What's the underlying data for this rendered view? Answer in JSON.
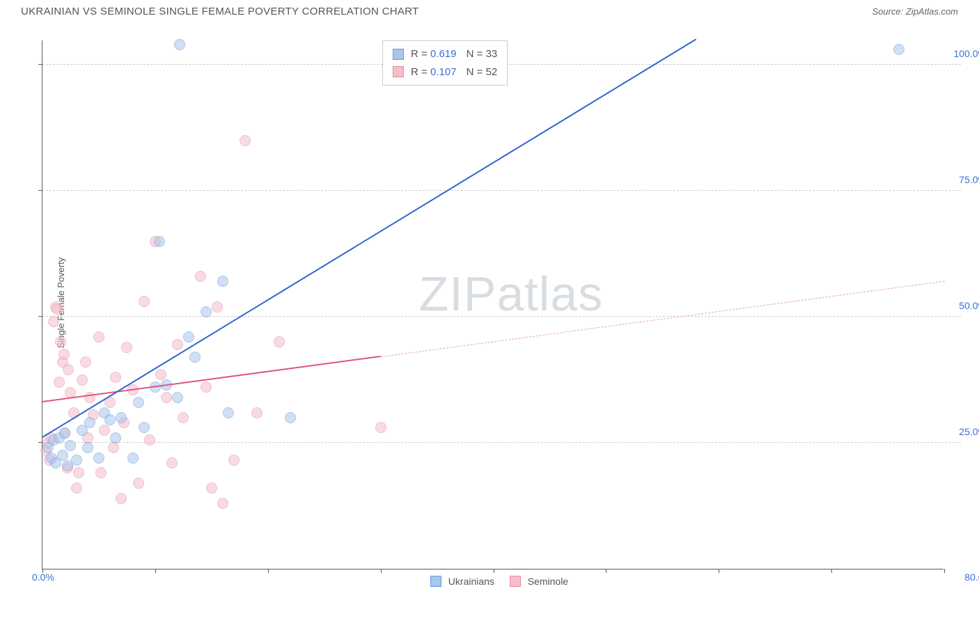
{
  "header": {
    "title": "UKRAINIAN VS SEMINOLE SINGLE FEMALE POVERTY CORRELATION CHART",
    "source_label": "Source: ZipAtlas.com"
  },
  "chart": {
    "type": "scatter",
    "ylabel": "Single Female Poverty",
    "xlim": [
      0,
      80
    ],
    "ylim": [
      0,
      105
    ],
    "x_ticks": [
      0,
      10,
      20,
      30,
      40,
      50,
      60,
      70,
      80
    ],
    "y_ticks": [
      25,
      50,
      75,
      100
    ],
    "x_tick_labels": {
      "min": "0.0%",
      "max": "80.0%"
    },
    "y_tick_labels": [
      "25.0%",
      "50.0%",
      "75.0%",
      "100.0%"
    ],
    "background_color": "#ffffff",
    "grid_color": "#cccccc",
    "axis_color": "#5a5a5a",
    "tick_label_color": "#3a6fd8",
    "marker_radius": 8,
    "marker_opacity": 0.55,
    "watermark_text": "ZIPatlas",
    "watermark_color": "#d8dde2",
    "series": {
      "ukrainians": {
        "label": "Ukrainians",
        "color_fill": "#a9c6ec",
        "color_stroke": "#6a9ad8",
        "R": "0.619",
        "N": "33",
        "trend": {
          "x1": 0,
          "y1": 26,
          "x2": 58,
          "y2": 105,
          "color": "#2f66d0",
          "width": 2.5,
          "dash": "solid"
        },
        "points": [
          [
            0.5,
            24
          ],
          [
            0.8,
            22
          ],
          [
            1,
            25.5
          ],
          [
            1.2,
            21
          ],
          [
            1.5,
            26
          ],
          [
            1.8,
            22.5
          ],
          [
            2,
            27
          ],
          [
            2.2,
            20.5
          ],
          [
            2.5,
            24.5
          ],
          [
            3,
            21.5
          ],
          [
            3.5,
            27.5
          ],
          [
            4,
            24
          ],
          [
            4.2,
            29
          ],
          [
            5,
            22
          ],
          [
            5.5,
            31
          ],
          [
            6,
            29.5
          ],
          [
            6.5,
            26
          ],
          [
            7,
            30
          ],
          [
            8,
            22
          ],
          [
            8.5,
            33
          ],
          [
            9,
            28
          ],
          [
            10,
            36
          ],
          [
            10.4,
            65
          ],
          [
            11,
            36.5
          ],
          [
            12,
            34
          ],
          [
            12.2,
            104
          ],
          [
            13,
            46
          ],
          [
            13.5,
            42
          ],
          [
            14.5,
            51
          ],
          [
            16,
            57
          ],
          [
            16.5,
            31
          ],
          [
            22,
            30
          ],
          [
            76,
            103
          ]
        ]
      },
      "seminole": {
        "label": "Seminole",
        "color_fill": "#f4bfca",
        "color_stroke": "#e68aa0",
        "R": "0.107",
        "N": "52",
        "trend_solid": {
          "x1": 0,
          "y1": 33,
          "x2": 30,
          "y2": 42,
          "color": "#e05578",
          "width": 2,
          "dash": "solid"
        },
        "trend_dash": {
          "x1": 30,
          "y1": 42,
          "x2": 80,
          "y2": 57,
          "color": "#e9a3b4",
          "width": 1.3,
          "dash": "dashed"
        },
        "points": [
          [
            0.3,
            23.5
          ],
          [
            0.5,
            25
          ],
          [
            0.6,
            21.5
          ],
          [
            0.8,
            26
          ],
          [
            1,
            49
          ],
          [
            1.2,
            52
          ],
          [
            1.3,
            51.5
          ],
          [
            1.5,
            37
          ],
          [
            1.6,
            45
          ],
          [
            1.8,
            41
          ],
          [
            1.9,
            42.5
          ],
          [
            2,
            27
          ],
          [
            2.2,
            20
          ],
          [
            2.3,
            39.5
          ],
          [
            2.5,
            35
          ],
          [
            2.8,
            31
          ],
          [
            3,
            16
          ],
          [
            3.2,
            19
          ],
          [
            3.5,
            37.5
          ],
          [
            3.8,
            41
          ],
          [
            4,
            26
          ],
          [
            4.2,
            34
          ],
          [
            4.5,
            30.5
          ],
          [
            5,
            46
          ],
          [
            5.2,
            19
          ],
          [
            5.5,
            27.5
          ],
          [
            6,
            33
          ],
          [
            6.3,
            24
          ],
          [
            6.5,
            38
          ],
          [
            7,
            14
          ],
          [
            7.2,
            29
          ],
          [
            7.5,
            44
          ],
          [
            8,
            35.5
          ],
          [
            8.5,
            17
          ],
          [
            9,
            53
          ],
          [
            9.5,
            25.5
          ],
          [
            10,
            65
          ],
          [
            10.5,
            38.5
          ],
          [
            11,
            34
          ],
          [
            11.5,
            21
          ],
          [
            12,
            44.5
          ],
          [
            12.5,
            30
          ],
          [
            14,
            58
          ],
          [
            14.5,
            36
          ],
          [
            15,
            16
          ],
          [
            15.5,
            52
          ],
          [
            16,
            13
          ],
          [
            17,
            21.5
          ],
          [
            18,
            85
          ],
          [
            19,
            31
          ],
          [
            21,
            45
          ],
          [
            30,
            28
          ]
        ]
      }
    },
    "x_legend": {
      "items": [
        "ukrainians",
        "seminole"
      ]
    }
  }
}
